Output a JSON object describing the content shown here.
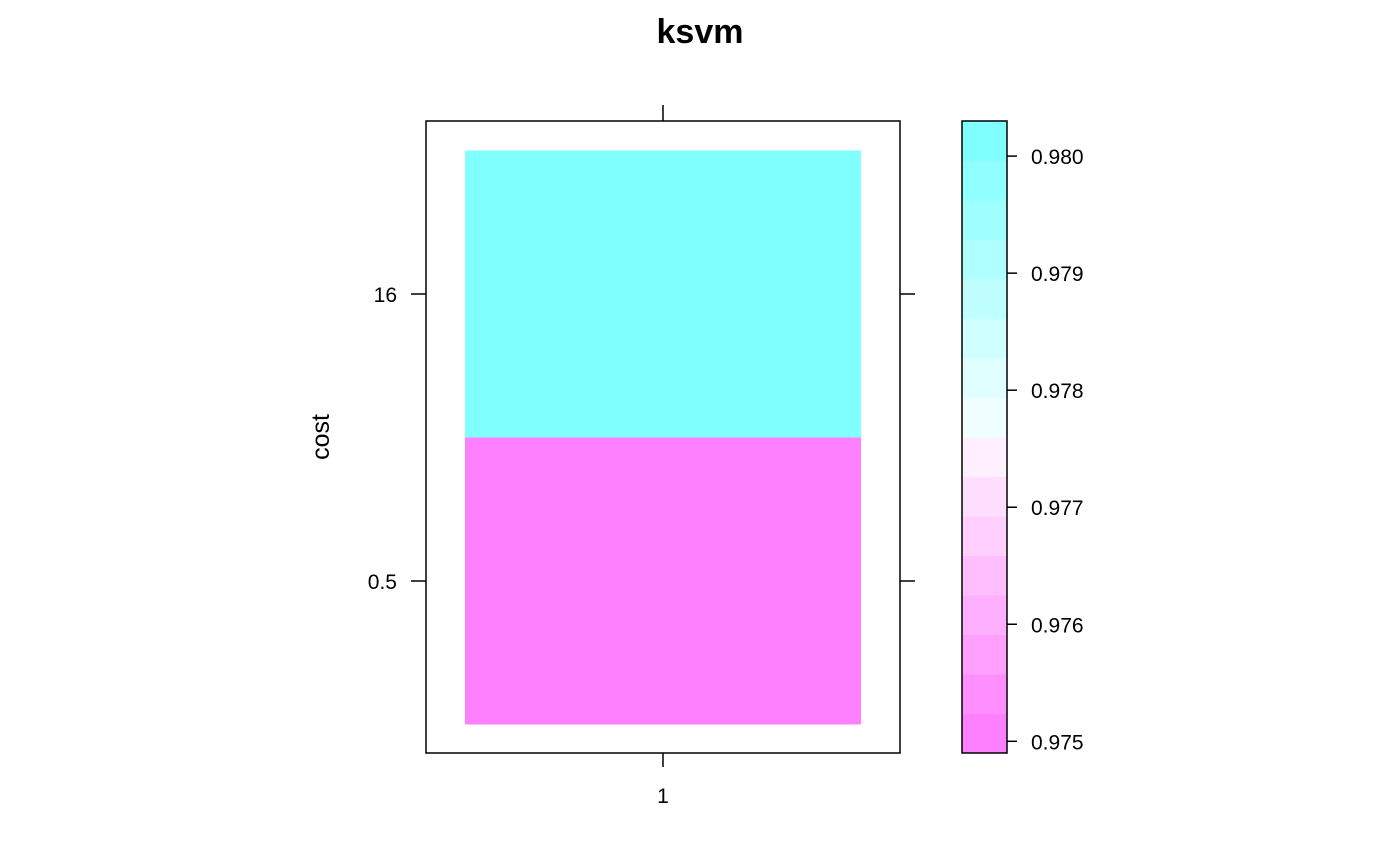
{
  "chart_data": {
    "type": "heatmap",
    "title": "ksvm",
    "xlabel": "",
    "ylabel": "cost",
    "x_categories": [
      "1"
    ],
    "y_categories": [
      "0.5",
      "16"
    ],
    "cells": [
      {
        "x": "1",
        "y": "0.5",
        "value": 0.9749,
        "color": "#FF80FF"
      },
      {
        "x": "1",
        "y": "16",
        "value": 0.9802,
        "color": "#80FFFF"
      }
    ],
    "colorkey": {
      "range": [
        0.9749,
        0.9803
      ],
      "ticks": [
        "0.975",
        "0.976",
        "0.977",
        "0.978",
        "0.979",
        "0.980"
      ],
      "tick_values": [
        0.975,
        0.976,
        0.977,
        0.978,
        0.979,
        0.98
      ],
      "bands": [
        "#FF80FF",
        "#FF8FFF",
        "#FF9FFF",
        "#FFAFFF",
        "#FFBFFF",
        "#FFCFFF",
        "#FFDFFF",
        "#FFEFFF",
        "#F0FFFF",
        "#E0FFFF",
        "#D0FFFF",
        "#BFFFFF",
        "#AFFFFF",
        "#9FFFFF",
        "#8FFFFF",
        "#80FFFF"
      ]
    }
  }
}
